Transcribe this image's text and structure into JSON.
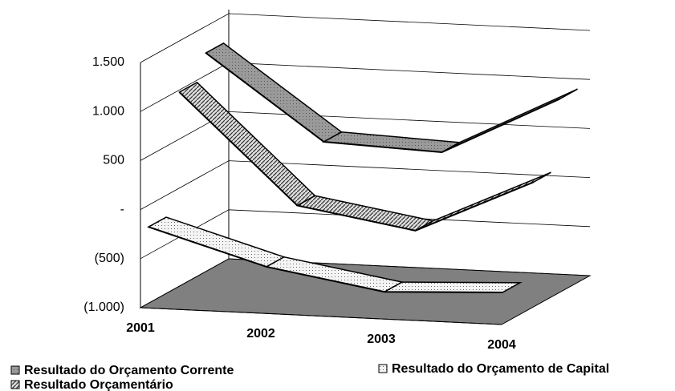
{
  "chart_data": {
    "type": "line3d",
    "categories": [
      "2001",
      "2002",
      "2003",
      "2004"
    ],
    "ylim": [
      -1000,
      1500
    ],
    "yticks": [
      {
        "value": -1000,
        "label": "(1.000)"
      },
      {
        "value": -500,
        "label": "(500)"
      },
      {
        "value": 0,
        "label": "-"
      },
      {
        "value": 500,
        "label": "500"
      },
      {
        "value": 1000,
        "label": "1.000"
      },
      {
        "value": 1500,
        "label": "1.500"
      }
    ],
    "grid": true,
    "series": [
      {
        "name": "Resultado do Orçamento Corrente",
        "color": "#999999",
        "values": [
          1250,
          400,
          350,
          950
        ]
      },
      {
        "name": "Resultado do Orçamento de Capital",
        "color": "#eeeeee",
        "values": [
          -200,
          -550,
          -750,
          -700
        ]
      },
      {
        "name": "Resultado Orçamentário",
        "color": "#bbbbbb",
        "values": [
          1000,
          -100,
          -300,
          250
        ]
      }
    ]
  }
}
